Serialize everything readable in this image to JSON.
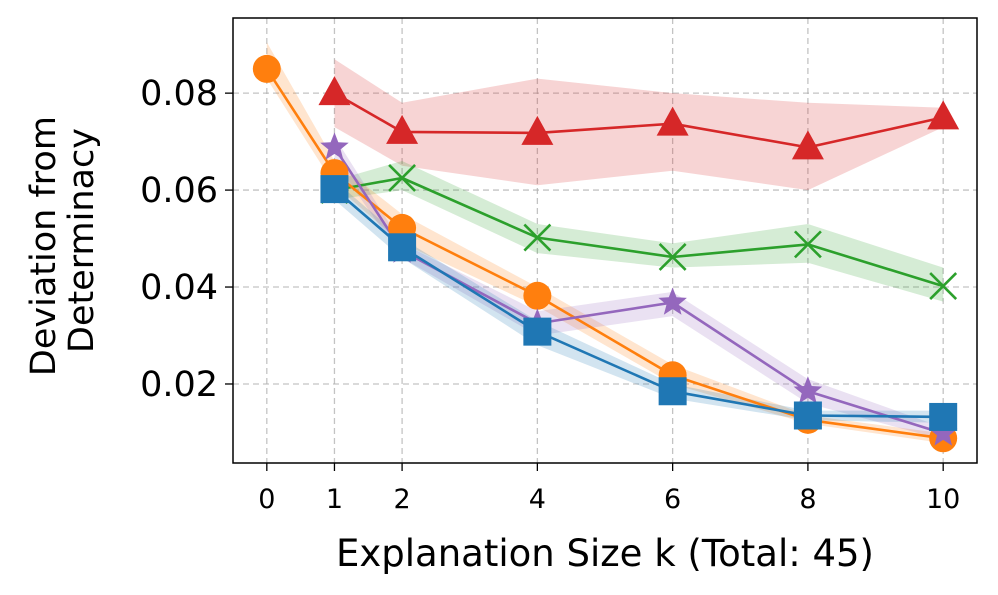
{
  "chart_data": {
    "type": "line",
    "xlabel": "Explanation Size k (Total: 45)",
    "ylabel_lines": [
      "Deviation from",
      "Determinacy"
    ],
    "xlim": [
      -0.5,
      10.5
    ],
    "ylim": [
      0.0037,
      0.0955
    ],
    "x_ticks": [
      0,
      1,
      2,
      4,
      6,
      8,
      10
    ],
    "y_ticks": [
      0.02,
      0.04,
      0.06,
      0.08
    ],
    "y_tick_labels": [
      "0.02",
      "0.04",
      "0.06",
      "0.08"
    ],
    "grid": true,
    "series": [
      {
        "name": "red-triangle",
        "color": "#d62728",
        "marker": "triangle",
        "x": [
          1,
          2,
          4,
          6,
          8,
          10
        ],
        "values": [
          0.08,
          0.072,
          0.0718,
          0.0737,
          0.0688,
          0.075
        ],
        "lower": [
          0.073,
          0.065,
          0.061,
          0.064,
          0.06,
          0.073
        ],
        "upper": [
          0.087,
          0.078,
          0.083,
          0.08,
          0.078,
          0.077
        ]
      },
      {
        "name": "green-x",
        "color": "#2ca02c",
        "marker": "x",
        "x": [
          1,
          2,
          4,
          6,
          8,
          10
        ],
        "values": [
          0.06,
          0.0625,
          0.0502,
          0.0462,
          0.0488,
          0.0402
        ],
        "lower": [
          0.058,
          0.06,
          0.047,
          0.044,
          0.045,
          0.037
        ],
        "upper": [
          0.062,
          0.066,
          0.053,
          0.049,
          0.053,
          0.044
        ]
      },
      {
        "name": "orange-circle",
        "color": "#ff7f0e",
        "marker": "circle",
        "x": [
          0,
          1,
          2,
          4,
          6,
          8,
          10
        ],
        "values": [
          0.085,
          0.0635,
          0.0522,
          0.0382,
          0.0218,
          0.0126,
          0.0088
        ],
        "lower": [
          0.083,
          0.061,
          0.049,
          0.036,
          0.02,
          0.0118,
          0.0078
        ],
        "upper": [
          0.0905,
          0.066,
          0.055,
          0.04,
          0.024,
          0.0135,
          0.0098
        ]
      },
      {
        "name": "purple-star",
        "color": "#9467bd",
        "marker": "star",
        "x": [
          1,
          2,
          4,
          6,
          8,
          10
        ],
        "values": [
          0.0688,
          0.0475,
          0.0325,
          0.0368,
          0.0185,
          0.0098
        ],
        "lower": [
          0.066,
          0.046,
          0.03,
          0.034,
          0.016,
          0.0085
        ],
        "upper": [
          0.071,
          0.049,
          0.035,
          0.039,
          0.021,
          0.011
        ]
      },
      {
        "name": "blue-square",
        "color": "#1f77b4",
        "marker": "square",
        "x": [
          1,
          2,
          4,
          6,
          8,
          10
        ],
        "values": [
          0.0602,
          0.0482,
          0.0308,
          0.0185,
          0.0135,
          0.0132
        ],
        "lower": [
          0.058,
          0.046,
          0.028,
          0.017,
          0.0125,
          0.012
        ],
        "upper": [
          0.062,
          0.05,
          0.033,
          0.02,
          0.0145,
          0.0145
        ]
      }
    ]
  }
}
